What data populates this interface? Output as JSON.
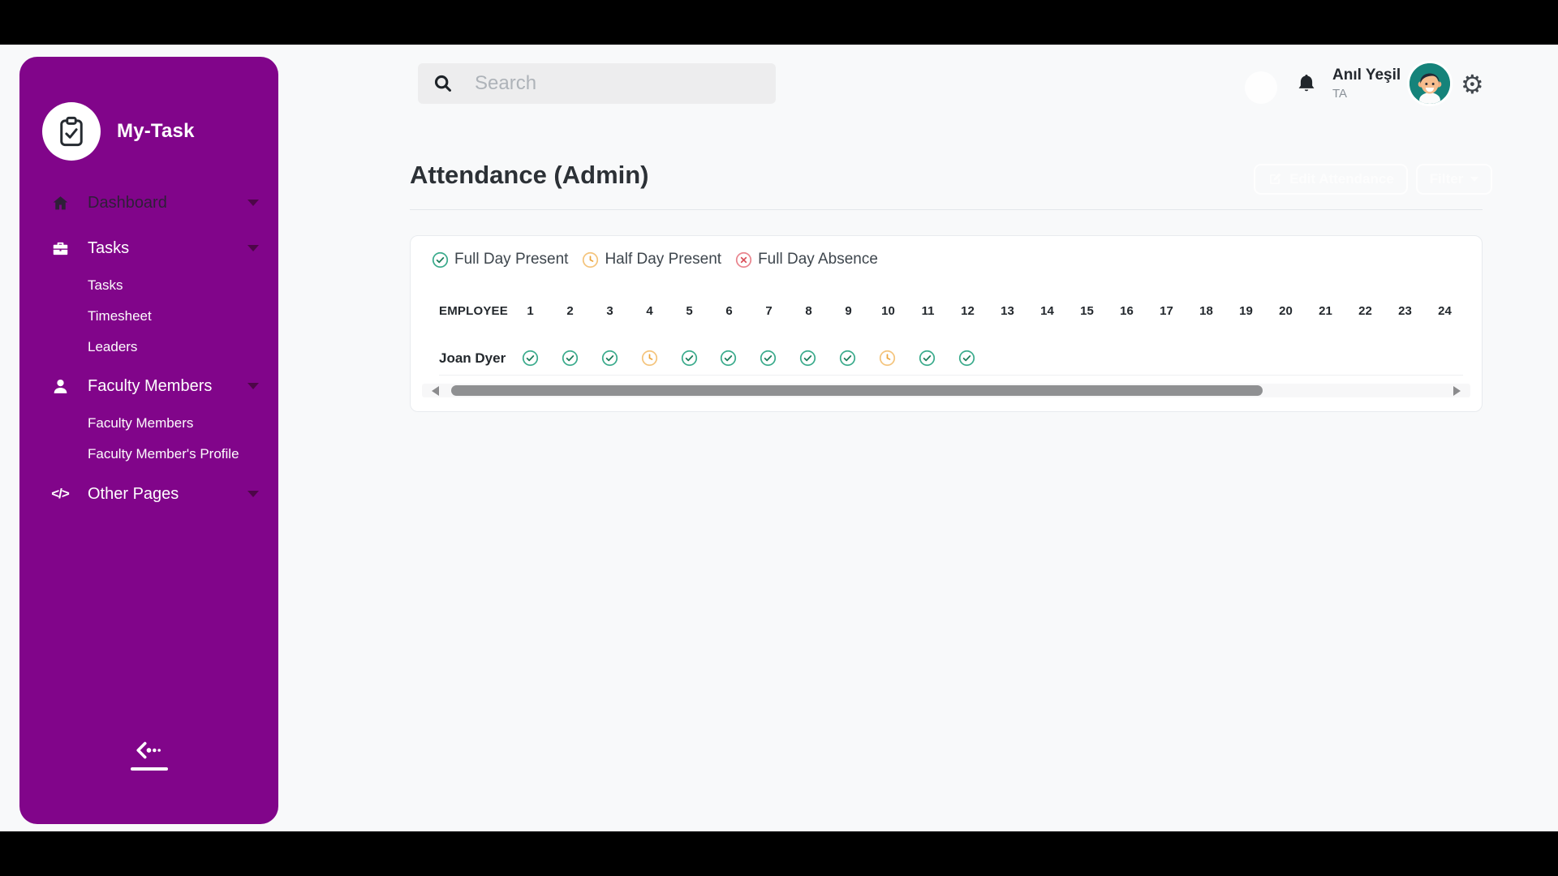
{
  "app": {
    "title": "My-Task"
  },
  "sidebar": {
    "items": [
      {
        "label": "Dashboard",
        "icon": "home-icon"
      },
      {
        "label": "Tasks",
        "icon": "briefcase-icon"
      },
      {
        "label": "Faculty Members",
        "icon": "person-icon"
      },
      {
        "label": "Other Pages",
        "icon": "code-icon"
      }
    ],
    "tasks_children": [
      "Tasks",
      "Timesheet",
      "Leaders"
    ],
    "faculty_children": [
      "Faculty Members",
      "Faculty Member's Profile"
    ],
    "other_pages_glyph": "</>"
  },
  "topbar": {
    "search_placeholder": "Search",
    "user_name": "Anıl Yeşil",
    "user_role": "TA"
  },
  "page": {
    "title": "Attendance (Admin)",
    "edit_button": "Edit Attendance",
    "filter_button": "Filter"
  },
  "legend": {
    "full": "Full Day Present",
    "half": "Half Day Present",
    "absent": "Full Day Absence"
  },
  "attendance": {
    "employee_header": "EMPLOYEE",
    "days": [
      "1",
      "2",
      "3",
      "4",
      "5",
      "6",
      "7",
      "8",
      "9",
      "10",
      "11",
      "12",
      "13",
      "14",
      "15",
      "16",
      "17",
      "18",
      "19",
      "20",
      "21",
      "22",
      "23",
      "24"
    ],
    "rows": [
      {
        "name": "Joan Dyer",
        "statuses": [
          "full",
          "full",
          "full",
          "half",
          "full",
          "full",
          "full",
          "full",
          "full",
          "half",
          "full",
          "full",
          "",
          "",
          "",
          "",
          "",
          "",
          "",
          "",
          "",
          "",
          "",
          ""
        ]
      }
    ]
  },
  "colors": {
    "sidebar_purple": "#81058a",
    "present_green": "#3aab8c",
    "half_amber": "#f4c47c",
    "absent_red": "#e4606d",
    "background": "#f8f9fa"
  }
}
